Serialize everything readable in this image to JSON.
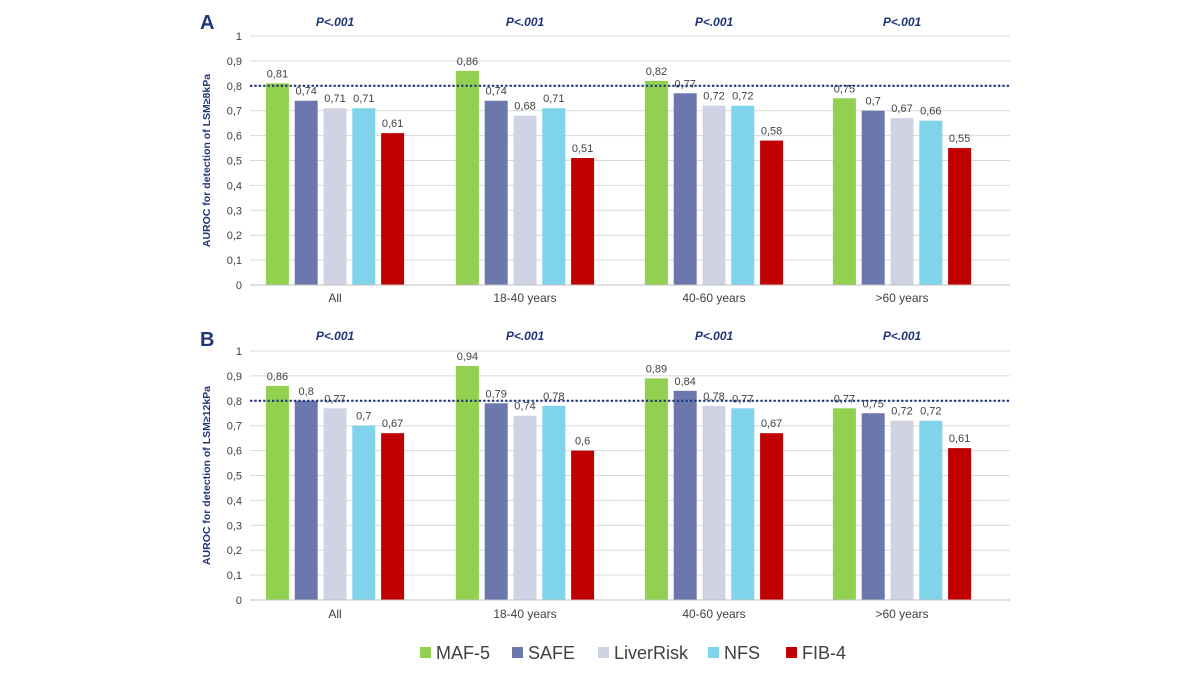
{
  "legend": [
    {
      "name": "MAF-5",
      "color": "#92d050"
    },
    {
      "name": "SAFE",
      "color": "#6b77ad"
    },
    {
      "name": "LiverRisk",
      "color": "#d0d3e4"
    },
    {
      "name": "NFS",
      "color": "#7fd3ea"
    },
    {
      "name": "FIB-4",
      "color": "#c00000"
    }
  ],
  "reference_color": "#1f3579",
  "chart_data": [
    {
      "type": "bar",
      "panel_label": "A",
      "ylabel": "AUROC for detection of LSM≥8kPa",
      "ylim": [
        0,
        1
      ],
      "yticks": [
        "0",
        "0,1",
        "0,2",
        "0,3",
        "0,4",
        "0,5",
        "0,6",
        "0,7",
        "0,8",
        "0,9",
        "1"
      ],
      "reference_line": 0.8,
      "categories": [
        "All",
        "18-40 years",
        "40-60 years",
        ">60 years"
      ],
      "pvalues": [
        "P<.001",
        "P<.001",
        "P<.001",
        "P<.001"
      ],
      "series": [
        {
          "name": "MAF-5",
          "values": [
            0.81,
            0.86,
            0.82,
            0.75
          ],
          "labels": [
            "0,81",
            "0,86",
            "0,82",
            "0,75"
          ]
        },
        {
          "name": "SAFE",
          "values": [
            0.74,
            0.74,
            0.77,
            0.7
          ],
          "labels": [
            "0,74",
            "0,74",
            "0,77",
            "0,7"
          ]
        },
        {
          "name": "LiverRisk",
          "values": [
            0.71,
            0.68,
            0.72,
            0.67
          ],
          "labels": [
            "0,71",
            "0,68",
            "0,72",
            "0,67"
          ]
        },
        {
          "name": "NFS",
          "values": [
            0.71,
            0.71,
            0.72,
            0.66
          ],
          "labels": [
            "0,71",
            "0,71",
            "0,72",
            "0,66"
          ]
        },
        {
          "name": "FIB-4",
          "values": [
            0.61,
            0.51,
            0.58,
            0.55
          ],
          "labels": [
            "0,61",
            "0,51",
            "0,58",
            "0,55"
          ]
        }
      ]
    },
    {
      "type": "bar",
      "panel_label": "B",
      "ylabel": "AUROC for detection of LSM≥12kPa",
      "ylim": [
        0,
        1
      ],
      "yticks": [
        "0",
        "0,1",
        "0,2",
        "0,3",
        "0,4",
        "0,5",
        "0,6",
        "0,7",
        "0,8",
        "0,9",
        "1"
      ],
      "reference_line": 0.8,
      "categories": [
        "All",
        "18-40 years",
        "40-60 years",
        ">60 years"
      ],
      "pvalues": [
        "P<.001",
        "P<.001",
        "P<.001",
        "P<.001"
      ],
      "series": [
        {
          "name": "MAF-5",
          "values": [
            0.86,
            0.94,
            0.89,
            0.77
          ],
          "labels": [
            "0,86",
            "0,94",
            "0,89",
            "0,77"
          ]
        },
        {
          "name": "SAFE",
          "values": [
            0.8,
            0.79,
            0.84,
            0.75
          ],
          "labels": [
            "0,8",
            "0,79",
            "0,84",
            "0,75"
          ]
        },
        {
          "name": "LiverRisk",
          "values": [
            0.77,
            0.74,
            0.78,
            0.72
          ],
          "labels": [
            "0,77",
            "0,74",
            "0,78",
            "0,72"
          ]
        },
        {
          "name": "NFS",
          "values": [
            0.7,
            0.78,
            0.77,
            0.72
          ],
          "labels": [
            "0,7",
            "0,78",
            "0,77",
            "0,72"
          ]
        },
        {
          "name": "FIB-4",
          "values": [
            0.67,
            0.6,
            0.67,
            0.61
          ],
          "labels": [
            "0,67",
            "0,6",
            "0,67",
            "0,61"
          ]
        }
      ]
    }
  ]
}
